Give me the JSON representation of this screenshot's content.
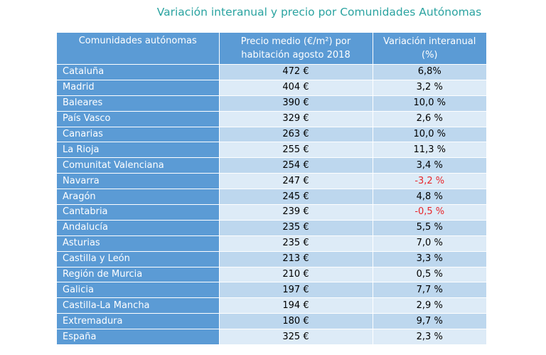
{
  "title": "Variación interanual y precio por Comunidades Autónomas",
  "table": {
    "headers": [
      "Comunidades autónomas",
      "Precio medio (€/m²) por habitación agosto 2018",
      "Variación interanual (%)"
    ],
    "rows": [
      {
        "name": "Cataluña",
        "price": "472 €",
        "variation": "6,8%",
        "negative": false
      },
      {
        "name": "Madrid",
        "price": "404 €",
        "variation": "3,2 %",
        "negative": false
      },
      {
        "name": "Baleares",
        "price": "390 €",
        "variation": "10,0 %",
        "negative": false
      },
      {
        "name": "País Vasco",
        "price": "329 €",
        "variation": "2,6 %",
        "negative": false
      },
      {
        "name": "Canarias",
        "price": "263 €",
        "variation": "10,0 %",
        "negative": false
      },
      {
        "name": "La Rioja",
        "price": "255 €",
        "variation": "11,3 %",
        "negative": false
      },
      {
        "name": "Comunitat Valenciana",
        "price": "254 €",
        "variation": "3,4 %",
        "negative": false
      },
      {
        "name": "Navarra",
        "price": "247 €",
        "variation": "-3,2 %",
        "negative": true
      },
      {
        "name": "Aragón",
        "price": "245 €",
        "variation": "4,8 %",
        "negative": false
      },
      {
        "name": "Cantabria",
        "price": "239 €",
        "variation": "-0,5 %",
        "negative": true
      },
      {
        "name": "Andalucía",
        "price": "235 €",
        "variation": "5,5 %",
        "negative": false
      },
      {
        "name": "Asturias",
        "price": "235 €",
        "variation": "7,0 %",
        "negative": false
      },
      {
        "name": "Castilla y León",
        "price": "213 €",
        "variation": "3,3 %",
        "negative": false
      },
      {
        "name": "Región de Murcia",
        "price": "210 €",
        "variation": "0,5 %",
        "negative": false
      },
      {
        "name": "Galicia",
        "price": "197 €",
        "variation": "7,7 %",
        "negative": false
      },
      {
        "name": "Castilla-La Mancha",
        "price": "194 €",
        "variation": "2,9 %",
        "negative": false
      },
      {
        "name": "Extremadura",
        "price": "180 €",
        "variation": "9,7 %",
        "negative": false
      },
      {
        "name": "España",
        "price": "325 €",
        "variation": "2,3 %",
        "negative": false
      }
    ]
  },
  "colors": {
    "title": "#2aa3a0",
    "header_bg": "#5b9bd5",
    "row_dark": "#bdd7ee",
    "row_light": "#ddebf7",
    "negative": "#e8262b"
  }
}
